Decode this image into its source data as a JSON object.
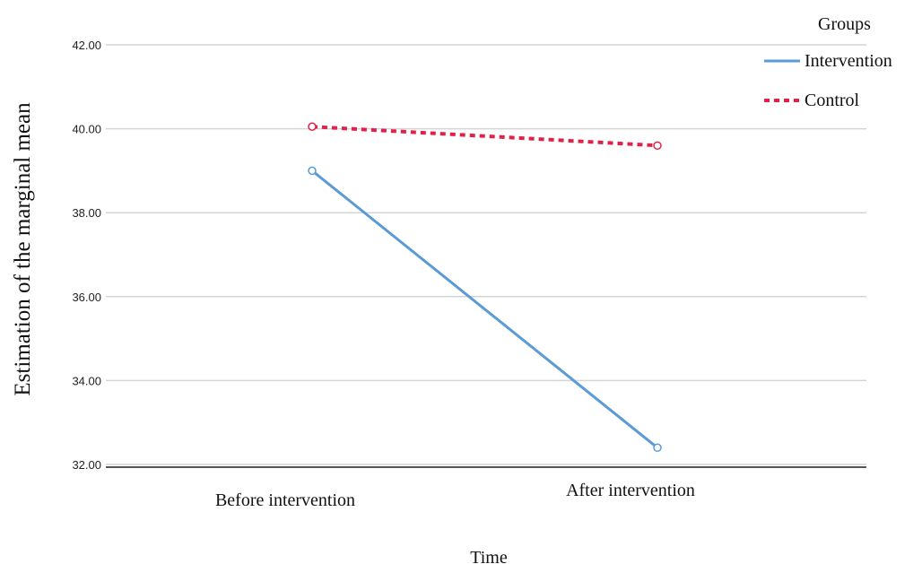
{
  "chart_data": {
    "type": "line",
    "ylabel": "Estimation of the marginal mean",
    "xlabel": "Time",
    "categories": [
      "Before intervention",
      "After intervention"
    ],
    "ylim": [
      32,
      42
    ],
    "yticks": [
      "32.00",
      "34.00",
      "36.00",
      "38.00",
      "40.00",
      "42.00"
    ],
    "grid": true,
    "legend": {
      "title": "Groups",
      "placement": "top-right"
    },
    "series": [
      {
        "name": "Intervention",
        "values": [
          39.0,
          32.4
        ],
        "color": "#5b9bd5",
        "style": "solid"
      },
      {
        "name": "Control",
        "values": [
          40.05,
          39.6
        ],
        "color": "#e0224a",
        "style": "dashed"
      }
    ]
  }
}
